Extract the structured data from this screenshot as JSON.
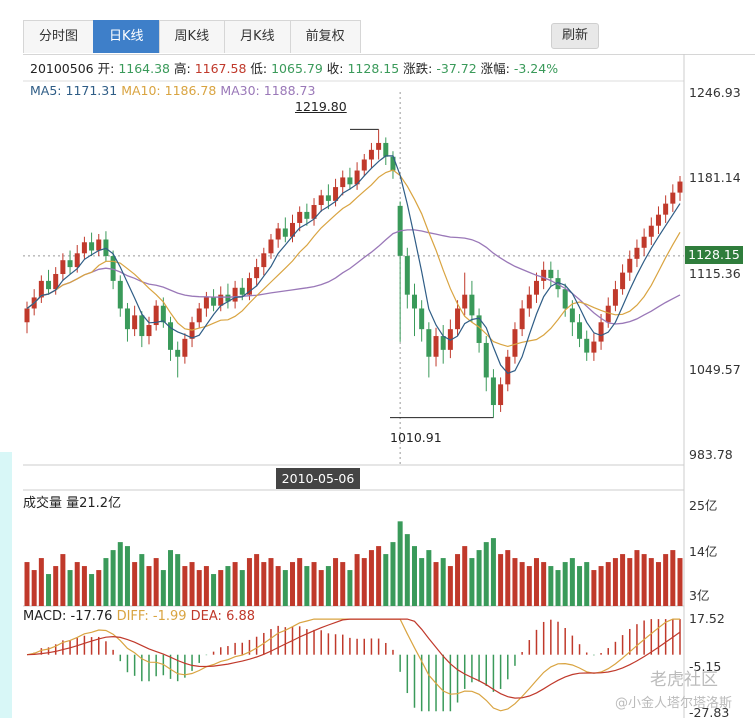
{
  "tabs": [
    {
      "label": "分时图",
      "active": false
    },
    {
      "label": "日K线",
      "active": true
    },
    {
      "label": "周K线",
      "active": false
    },
    {
      "label": "月K线",
      "active": false
    },
    {
      "label": "前复权",
      "active": false
    }
  ],
  "refresh_label": "刷新",
  "info": {
    "date": "20100506",
    "open_label": "开:",
    "open": "1164.38",
    "high_label": "高:",
    "high": "1167.58",
    "low_label": "低:",
    "low": "1065.79",
    "close_label": "收:",
    "close": "1128.15",
    "change_label": "涨跌:",
    "change": "-37.72",
    "pct_label": "涨幅:",
    "pct": "-3.24%"
  },
  "ma": {
    "ma5_label": "MA5:",
    "ma5": "1171.31",
    "ma10_label": "MA10:",
    "ma10": "1186.78",
    "ma30_label": "MA30:",
    "ma30": "1188.73"
  },
  "price_axis": [
    "1246.93",
    "1181.14",
    "1115.36",
    "1049.57",
    "983.78"
  ],
  "current_price": "1128.15",
  "annotations": {
    "high": "1219.80",
    "low": "1010.91"
  },
  "crosshair_date": "2010-05-06",
  "volume": {
    "title": "成交量 量21.2亿",
    "axis": [
      "25亿",
      "14亿",
      "3亿"
    ]
  },
  "macd": {
    "macd_label": "MACD:",
    "macd": "-17.76",
    "diff_label": "DIFF:",
    "diff": "-1.99",
    "dea_label": "DEA:",
    "dea": "6.88",
    "axis": [
      "17.52",
      "-5.15",
      "-27.83"
    ]
  },
  "watermark": {
    "logo": "老虎社区",
    "user": "@小金人塔尔塔洛斯"
  },
  "colors": {
    "up": "#c0392b",
    "down": "#3a9a5a",
    "ma5": "#2f5d86",
    "ma10": "#d9a441",
    "ma30": "#9a78b8",
    "active_tab": "#3e7fc9"
  },
  "chart_data": {
    "type": "candlestick",
    "price_range": [
      983.78,
      1246.93
    ],
    "volume_range_yi": [
      3,
      25
    ],
    "macd_range": [
      -27.83,
      17.52
    ],
    "candles_approx": [
      {
        "o": 1080,
        "c": 1090,
        "h": 1095,
        "l": 1072,
        "v": 11
      },
      {
        "o": 1090,
        "c": 1098,
        "h": 1104,
        "l": 1085,
        "v": 9
      },
      {
        "o": 1098,
        "c": 1110,
        "h": 1114,
        "l": 1094,
        "v": 12
      },
      {
        "o": 1110,
        "c": 1104,
        "h": 1118,
        "l": 1100,
        "v": 8
      },
      {
        "o": 1104,
        "c": 1115,
        "h": 1120,
        "l": 1100,
        "v": 10
      },
      {
        "o": 1115,
        "c": 1125,
        "h": 1130,
        "l": 1110,
        "v": 13
      },
      {
        "o": 1125,
        "c": 1120,
        "h": 1132,
        "l": 1115,
        "v": 9
      },
      {
        "o": 1120,
        "c": 1130,
        "h": 1136,
        "l": 1116,
        "v": 11
      },
      {
        "o": 1130,
        "c": 1138,
        "h": 1142,
        "l": 1126,
        "v": 10
      },
      {
        "o": 1138,
        "c": 1132,
        "h": 1145,
        "l": 1128,
        "v": 8
      },
      {
        "o": 1132,
        "c": 1140,
        "h": 1144,
        "l": 1128,
        "v": 9
      },
      {
        "o": 1140,
        "c": 1128,
        "h": 1146,
        "l": 1124,
        "v": 12
      },
      {
        "o": 1128,
        "c": 1110,
        "h": 1132,
        "l": 1104,
        "v": 14
      },
      {
        "o": 1110,
        "c": 1090,
        "h": 1114,
        "l": 1084,
        "v": 16
      },
      {
        "o": 1090,
        "c": 1075,
        "h": 1094,
        "l": 1066,
        "v": 15
      },
      {
        "o": 1075,
        "c": 1085,
        "h": 1092,
        "l": 1070,
        "v": 11
      },
      {
        "o": 1085,
        "c": 1070,
        "h": 1088,
        "l": 1062,
        "v": 13
      },
      {
        "o": 1070,
        "c": 1078,
        "h": 1084,
        "l": 1064,
        "v": 10
      },
      {
        "o": 1078,
        "c": 1092,
        "h": 1096,
        "l": 1074,
        "v": 12
      },
      {
        "o": 1092,
        "c": 1080,
        "h": 1098,
        "l": 1076,
        "v": 9
      },
      {
        "o": 1080,
        "c": 1060,
        "h": 1084,
        "l": 1052,
        "v": 14
      },
      {
        "o": 1060,
        "c": 1055,
        "h": 1066,
        "l": 1040,
        "v": 13
      },
      {
        "o": 1055,
        "c": 1068,
        "h": 1072,
        "l": 1050,
        "v": 10
      },
      {
        "o": 1068,
        "c": 1080,
        "h": 1084,
        "l": 1062,
        "v": 11
      },
      {
        "o": 1080,
        "c": 1090,
        "h": 1094,
        "l": 1076,
        "v": 9
      },
      {
        "o": 1090,
        "c": 1098,
        "h": 1102,
        "l": 1084,
        "v": 10
      },
      {
        "o": 1098,
        "c": 1092,
        "h": 1104,
        "l": 1088,
        "v": 8
      },
      {
        "o": 1092,
        "c": 1100,
        "h": 1106,
        "l": 1088,
        "v": 9
      },
      {
        "o": 1100,
        "c": 1095,
        "h": 1108,
        "l": 1090,
        "v": 10
      },
      {
        "o": 1095,
        "c": 1105,
        "h": 1110,
        "l": 1090,
        "v": 11
      },
      {
        "o": 1105,
        "c": 1100,
        "h": 1112,
        "l": 1096,
        "v": 9
      },
      {
        "o": 1100,
        "c": 1112,
        "h": 1116,
        "l": 1096,
        "v": 12
      },
      {
        "o": 1112,
        "c": 1120,
        "h": 1126,
        "l": 1106,
        "v": 13
      },
      {
        "o": 1120,
        "c": 1130,
        "h": 1134,
        "l": 1114,
        "v": 11
      },
      {
        "o": 1130,
        "c": 1140,
        "h": 1144,
        "l": 1126,
        "v": 12
      },
      {
        "o": 1140,
        "c": 1148,
        "h": 1152,
        "l": 1134,
        "v": 10
      },
      {
        "o": 1148,
        "c": 1142,
        "h": 1156,
        "l": 1138,
        "v": 9
      },
      {
        "o": 1142,
        "c": 1152,
        "h": 1158,
        "l": 1138,
        "v": 11
      },
      {
        "o": 1152,
        "c": 1160,
        "h": 1164,
        "l": 1146,
        "v": 12
      },
      {
        "o": 1160,
        "c": 1155,
        "h": 1166,
        "l": 1150,
        "v": 10
      },
      {
        "o": 1155,
        "c": 1165,
        "h": 1170,
        "l": 1150,
        "v": 11
      },
      {
        "o": 1165,
        "c": 1172,
        "h": 1176,
        "l": 1160,
        "v": 9
      },
      {
        "o": 1172,
        "c": 1168,
        "h": 1180,
        "l": 1162,
        "v": 10
      },
      {
        "o": 1168,
        "c": 1178,
        "h": 1184,
        "l": 1164,
        "v": 12
      },
      {
        "o": 1178,
        "c": 1185,
        "h": 1190,
        "l": 1172,
        "v": 11
      },
      {
        "o": 1185,
        "c": 1180,
        "h": 1192,
        "l": 1176,
        "v": 9
      },
      {
        "o": 1180,
        "c": 1190,
        "h": 1196,
        "l": 1176,
        "v": 13
      },
      {
        "o": 1190,
        "c": 1198,
        "h": 1202,
        "l": 1186,
        "v": 12
      },
      {
        "o": 1198,
        "c": 1205,
        "h": 1210,
        "l": 1192,
        "v": 14
      },
      {
        "o": 1205,
        "c": 1210,
        "h": 1219.8,
        "l": 1198,
        "v": 15
      },
      {
        "o": 1210,
        "c": 1200,
        "h": 1214,
        "l": 1194,
        "v": 13
      },
      {
        "o": 1200,
        "c": 1190,
        "h": 1204,
        "l": 1184,
        "v": 16
      },
      {
        "o": 1164.38,
        "c": 1128.15,
        "h": 1167.58,
        "l": 1065.79,
        "v": 21.2
      },
      {
        "o": 1128,
        "c": 1100,
        "h": 1134,
        "l": 1090,
        "v": 18
      },
      {
        "o": 1100,
        "c": 1090,
        "h": 1108,
        "l": 1070,
        "v": 15
      },
      {
        "o": 1090,
        "c": 1075,
        "h": 1096,
        "l": 1066,
        "v": 12
      },
      {
        "o": 1075,
        "c": 1055,
        "h": 1080,
        "l": 1040,
        "v": 14
      },
      {
        "o": 1055,
        "c": 1070,
        "h": 1076,
        "l": 1048,
        "v": 11
      },
      {
        "o": 1070,
        "c": 1060,
        "h": 1078,
        "l": 1050,
        "v": 12
      },
      {
        "o": 1060,
        "c": 1075,
        "h": 1082,
        "l": 1054,
        "v": 10
      },
      {
        "o": 1075,
        "c": 1090,
        "h": 1096,
        "l": 1070,
        "v": 13
      },
      {
        "o": 1090,
        "c": 1100,
        "h": 1116,
        "l": 1085,
        "v": 15
      },
      {
        "o": 1100,
        "c": 1085,
        "h": 1110,
        "l": 1080,
        "v": 12
      },
      {
        "o": 1085,
        "c": 1065,
        "h": 1090,
        "l": 1058,
        "v": 14
      },
      {
        "o": 1065,
        "c": 1040,
        "h": 1070,
        "l": 1030,
        "v": 16
      },
      {
        "o": 1040,
        "c": 1020,
        "h": 1046,
        "l": 1010.91,
        "v": 17
      },
      {
        "o": 1020,
        "c": 1035,
        "h": 1040,
        "l": 1015,
        "v": 13
      },
      {
        "o": 1035,
        "c": 1055,
        "h": 1060,
        "l": 1030,
        "v": 14
      },
      {
        "o": 1055,
        "c": 1075,
        "h": 1080,
        "l": 1050,
        "v": 12
      },
      {
        "o": 1075,
        "c": 1090,
        "h": 1096,
        "l": 1070,
        "v": 11
      },
      {
        "o": 1090,
        "c": 1100,
        "h": 1106,
        "l": 1084,
        "v": 10
      },
      {
        "o": 1100,
        "c": 1110,
        "h": 1116,
        "l": 1094,
        "v": 12
      },
      {
        "o": 1110,
        "c": 1118,
        "h": 1124,
        "l": 1104,
        "v": 11
      },
      {
        "o": 1118,
        "c": 1112,
        "h": 1124,
        "l": 1106,
        "v": 10
      },
      {
        "o": 1112,
        "c": 1104,
        "h": 1118,
        "l": 1098,
        "v": 9
      },
      {
        "o": 1104,
        "c": 1090,
        "h": 1108,
        "l": 1084,
        "v": 11
      },
      {
        "o": 1090,
        "c": 1080,
        "h": 1096,
        "l": 1070,
        "v": 12
      },
      {
        "o": 1080,
        "c": 1068,
        "h": 1086,
        "l": 1062,
        "v": 10
      },
      {
        "o": 1068,
        "c": 1058,
        "h": 1074,
        "l": 1052,
        "v": 11
      },
      {
        "o": 1058,
        "c": 1066,
        "h": 1072,
        "l": 1052,
        "v": 9
      },
      {
        "o": 1066,
        "c": 1080,
        "h": 1086,
        "l": 1060,
        "v": 10
      },
      {
        "o": 1080,
        "c": 1092,
        "h": 1098,
        "l": 1076,
        "v": 11
      },
      {
        "o": 1092,
        "c": 1104,
        "h": 1110,
        "l": 1088,
        "v": 12
      },
      {
        "o": 1104,
        "c": 1116,
        "h": 1122,
        "l": 1100,
        "v": 13
      },
      {
        "o": 1116,
        "c": 1126,
        "h": 1132,
        "l": 1110,
        "v": 12
      },
      {
        "o": 1126,
        "c": 1134,
        "h": 1140,
        "l": 1120,
        "v": 14
      },
      {
        "o": 1134,
        "c": 1142,
        "h": 1148,
        "l": 1128,
        "v": 13
      },
      {
        "o": 1142,
        "c": 1150,
        "h": 1156,
        "l": 1136,
        "v": 12
      },
      {
        "o": 1150,
        "c": 1158,
        "h": 1164,
        "l": 1144,
        "v": 11
      },
      {
        "o": 1158,
        "c": 1166,
        "h": 1172,
        "l": 1152,
        "v": 13
      },
      {
        "o": 1166,
        "c": 1174,
        "h": 1180,
        "l": 1160,
        "v": 14
      },
      {
        "o": 1174,
        "c": 1182,
        "h": 1186,
        "l": 1168,
        "v": 12
      }
    ]
  }
}
